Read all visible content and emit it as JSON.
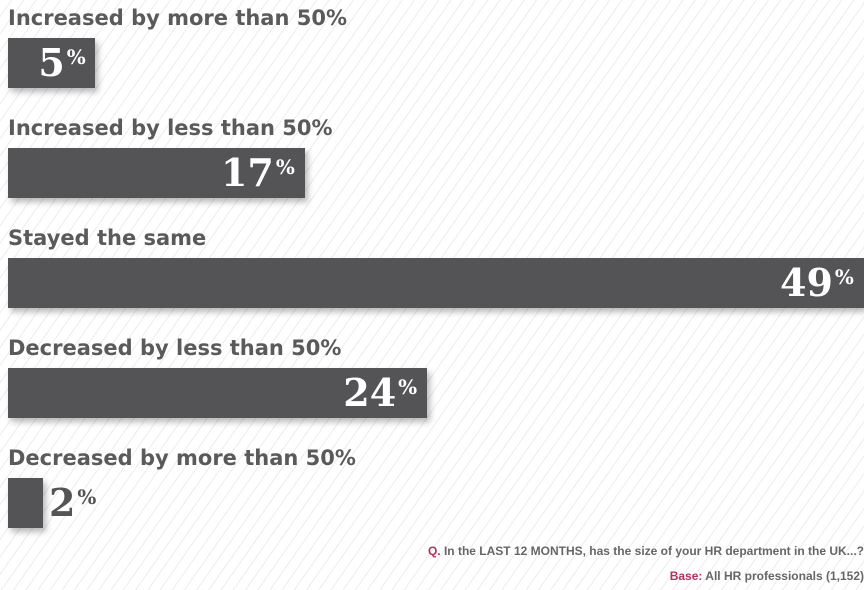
{
  "chart_data": {
    "type": "bar",
    "orientation": "horizontal",
    "categories": [
      "Increased by more than 50%",
      "Increased by less than 50%",
      "Stayed the same",
      "Decreased by less than 50%",
      "Decreased by more than 50%"
    ],
    "values": [
      5,
      17,
      49,
      24,
      2
    ],
    "value_suffix": "%",
    "xlim": [
      0,
      49
    ],
    "grid": false,
    "legend": "none"
  },
  "footer": {
    "question_prefix": "Q.",
    "question_text": "In the LAST 12 MONTHS, has the size of your HR department in the UK...?",
    "base_prefix": "Base:",
    "base_text": "All HR professionals (1,152)"
  },
  "colors": {
    "bar": "#545456",
    "label": "#5a5a5a",
    "accent": "#b5315a",
    "footer": "#666666"
  }
}
